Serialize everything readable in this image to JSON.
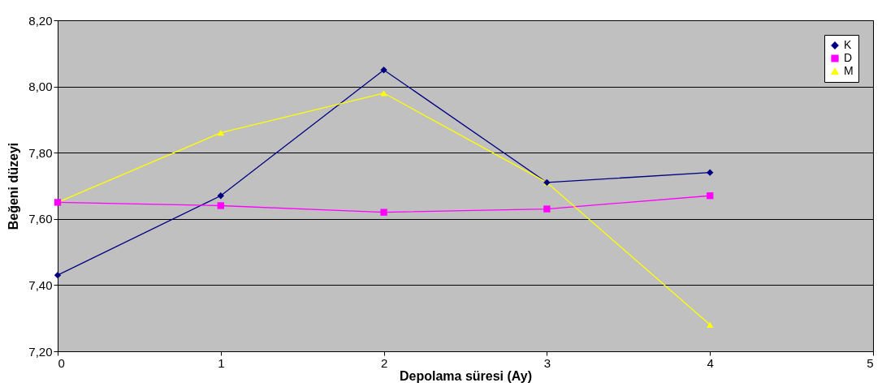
{
  "chart_data": {
    "type": "line",
    "xlabel": "Depolama süresi (Ay)",
    "ylabel": "Beğeni düzeyi",
    "x": [
      0,
      1,
      2,
      3,
      4
    ],
    "series": [
      {
        "name": "K",
        "color": "#000080",
        "marker": "diamond",
        "values": [
          7.43,
          7.67,
          8.05,
          7.71,
          7.74
        ]
      },
      {
        "name": "D",
        "color": "#ff00ff",
        "marker": "square",
        "values": [
          7.65,
          7.64,
          7.62,
          7.63,
          7.67
        ]
      },
      {
        "name": "M",
        "color": "#ffff00",
        "marker": "triangle",
        "values": [
          7.65,
          7.86,
          7.98,
          7.71,
          7.28
        ]
      }
    ],
    "xlim": [
      0,
      5
    ],
    "xticks": [
      0,
      1,
      2,
      3,
      4,
      5
    ],
    "ylim": [
      7.2,
      8.2
    ],
    "yticks": [
      {
        "value": 7.2,
        "label": "7,20"
      },
      {
        "value": 7.4,
        "label": "7,40"
      },
      {
        "value": 7.6,
        "label": "7,60"
      },
      {
        "value": 7.8,
        "label": "7,80"
      },
      {
        "value": 8.0,
        "label": "8,00"
      },
      {
        "value": 8.2,
        "label": "8,20"
      }
    ],
    "grid": "y",
    "legend": "top right",
    "line_style": "solid"
  }
}
